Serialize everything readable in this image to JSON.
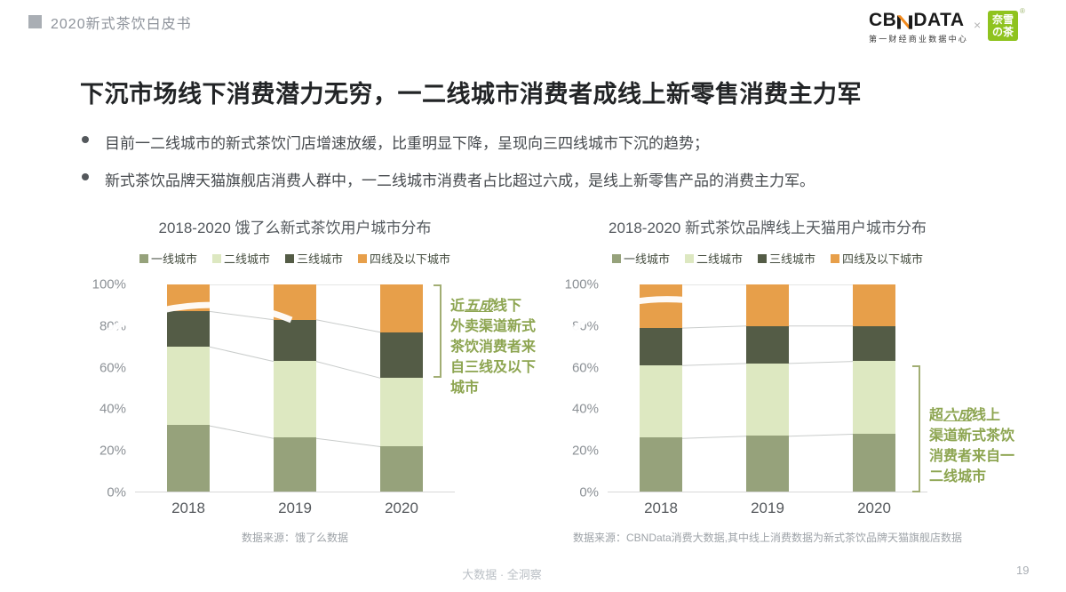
{
  "header": {
    "doc_title": "2020新式茶饮白皮书"
  },
  "logo": {
    "cbn_left": "CB",
    "cbn_right": "DATA",
    "cbn_sub": "第一财经商业数据中心",
    "separator": "×",
    "naixue_line1": "奈雪",
    "naixue_line2": "の茶",
    "reg": "®",
    "colors": {
      "naixue_green": "#8FC31F",
      "cbn_orange": "#F28A1D",
      "cbn_black": "#1B1B1B"
    }
  },
  "slide": {
    "title": "下沉市场线下消费潜力无穷，一二线城市消费者成线上新零售消费主力军",
    "bullets": [
      "目前一二线城市的新式茶饮门店增速放缓，比重明显下降，呈现向三四线城市下沉的趋势；",
      "新式茶饮品牌天猫旗舰店消费人群中，一二线城市消费者占比超过六成，是线上新零售产品的消费主力军。"
    ],
    "footer_slogan": "大数据 · 全洞察",
    "page_number": "19"
  },
  "chart_data": [
    {
      "type": "bar",
      "stacked": true,
      "title": "2018-2020 饿了么新式茶饮用户城市分布",
      "categories": [
        "2018",
        "2019",
        "2020"
      ],
      "yticks": [
        "0%",
        "20%",
        "40%",
        "60%",
        "80%",
        "100%"
      ],
      "ylim": [
        0,
        100
      ],
      "grid": false,
      "legend_position": "top",
      "series": [
        {
          "name": "一线城市",
          "color": "#96A27B",
          "values": [
            32,
            26,
            22
          ]
        },
        {
          "name": "二线城市",
          "color": "#DDE8C1",
          "values": [
            38,
            37,
            33
          ]
        },
        {
          "name": "三线城市",
          "color": "#545C46",
          "values": [
            17,
            20,
            22
          ]
        },
        {
          "name": "四线及以下城市",
          "color": "#E79F4A",
          "values": [
            13,
            17,
            23
          ]
        }
      ],
      "annotation": {
        "lines": [
          [
            {
              "t": "近"
            },
            {
              "t": "五成",
              "em": true
            },
            {
              "t": "线下"
            }
          ],
          [
            {
              "t": "外卖渠道新式"
            }
          ],
          [
            {
              "t": "茶饮消费者来"
            }
          ],
          [
            {
              "t": "自三线及以下"
            }
          ],
          [
            {
              "t": "城市"
            }
          ]
        ],
        "bracket_from_pct": 100,
        "bracket_to_pct": 55
      },
      "source": "数据来源：饿了么数据"
    },
    {
      "type": "bar",
      "stacked": true,
      "title": "2018-2020 新式茶饮品牌线上天猫用户城市分布",
      "categories": [
        "2018",
        "2019",
        "2020"
      ],
      "yticks": [
        "0%",
        "20%",
        "40%",
        "60%",
        "80%",
        "100%"
      ],
      "ylim": [
        0,
        100
      ],
      "grid": false,
      "legend_position": "top",
      "series": [
        {
          "name": "一线城市",
          "color": "#96A27B",
          "values": [
            26,
            27,
            28
          ]
        },
        {
          "name": "二线城市",
          "color": "#DDE8C1",
          "values": [
            35,
            35,
            35
          ]
        },
        {
          "name": "三线城市",
          "color": "#545C46",
          "values": [
            18,
            18,
            17
          ]
        },
        {
          "name": "四线及以下城市",
          "color": "#E79F4A",
          "values": [
            21,
            20,
            20
          ]
        }
      ],
      "annotation": {
        "lines": [
          [
            {
              "t": "超"
            },
            {
              "t": "六成",
              "em": true
            },
            {
              "t": "线上"
            }
          ],
          [
            {
              "t": "渠道新式茶饮"
            }
          ],
          [
            {
              "t": "消费者来自一"
            }
          ],
          [
            {
              "t": "二线城市"
            }
          ]
        ],
        "bracket_from_pct": 61,
        "bracket_to_pct": 0
      },
      "source": "数据来源：CBNData消费大数据,其中线上消费数据为新式茶饮品牌天猫旗舰店数据"
    }
  ]
}
